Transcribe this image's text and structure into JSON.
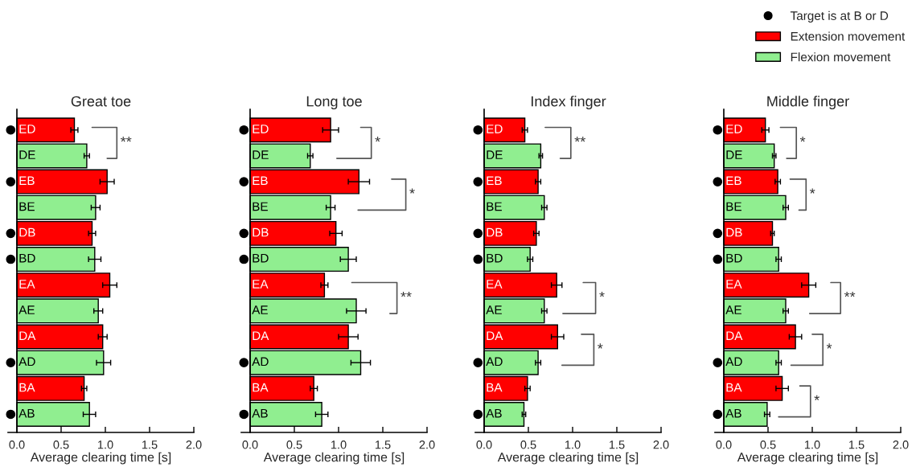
{
  "chart_data": [
    {
      "type": "bar",
      "orientation": "horizontal",
      "title": "Great toe",
      "xlabel": "Average clearing time [s]",
      "xlim": [
        -0.1,
        2.0
      ],
      "xticks": [
        {
          "value": 0,
          "label": "0.0"
        },
        {
          "value": 0.5,
          "label": "0.5"
        },
        {
          "value": 1,
          "label": "1.0"
        },
        {
          "value": 1.5,
          "label": "1.5"
        },
        {
          "value": 2,
          "label": "2.0"
        }
      ],
      "tick_labels": "x",
      "legend": false,
      "categories": [
        "ED",
        "DE",
        "EB",
        "BE",
        "DB",
        "BD",
        "EA",
        "AE",
        "DA",
        "AD",
        "BA",
        "AB"
      ],
      "series": [
        {
          "type": "scatter",
          "marker": "circle",
          "color": "#000000",
          "values": [
            -0.07,
            null,
            -0.07,
            null,
            -0.07,
            -0.07,
            null,
            null,
            null,
            -0.07,
            null,
            -0.07
          ]
        },
        {
          "color": "#ff0000",
          "values": [
            0.65,
            null,
            1.02,
            null,
            0.85,
            null,
            1.05,
            null,
            0.97,
            null,
            0.76,
            null
          ],
          "errors": [
            0.04,
            null,
            0.08,
            null,
            0.04,
            null,
            0.08,
            null,
            0.05,
            null,
            0.03,
            null
          ]
        },
        {
          "color": "#90ee90",
          "values": [
            null,
            0.79,
            null,
            0.89,
            null,
            0.88,
            null,
            0.92,
            null,
            0.98,
            null,
            0.82
          ],
          "errors": [
            null,
            0.03,
            null,
            0.05,
            null,
            0.07,
            null,
            0.05,
            null,
            0.08,
            null,
            0.07
          ]
        }
      ],
      "annotations": [
        "**"
      ]
    },
    {
      "type": "bar",
      "orientation": "horizontal",
      "title": "Long toe",
      "xlabel": "Average clearing time [s]",
      "xlim": [
        -0.1,
        2.0
      ],
      "xticks": [
        {
          "value": 0,
          "label": "0.0"
        },
        {
          "value": 0.5,
          "label": "0.5"
        },
        {
          "value": 1,
          "label": "1.0"
        },
        {
          "value": 1.5,
          "label": "1.5"
        },
        {
          "value": 2,
          "label": "2.0"
        }
      ],
      "tick_labels": "x",
      "legend": false,
      "categories": [
        "ED",
        "DE",
        "EB",
        "BE",
        "DB",
        "BD",
        "EA",
        "AE",
        "DA",
        "AD",
        "BA",
        "AB"
      ],
      "series": [
        {
          "type": "scatter",
          "marker": "circle",
          "color": "#000000",
          "values": [
            -0.07,
            null,
            -0.07,
            null,
            -0.07,
            -0.07,
            null,
            null,
            null,
            -0.07,
            null,
            -0.07
          ]
        },
        {
          "color": "#ff0000",
          "values": [
            0.91,
            null,
            1.23,
            null,
            0.97,
            null,
            0.84,
            null,
            1.11,
            null,
            0.72,
            null
          ],
          "errors": [
            0.09,
            null,
            0.12,
            null,
            0.07,
            null,
            0.04,
            null,
            0.11,
            null,
            0.04,
            null
          ]
        },
        {
          "color": "#90ee90",
          "values": [
            null,
            0.68,
            null,
            0.91,
            null,
            1.11,
            null,
            1.2,
            null,
            1.25,
            null,
            0.81
          ],
          "errors": [
            null,
            0.03,
            null,
            0.05,
            null,
            0.09,
            null,
            0.11,
            null,
            0.11,
            null,
            0.07
          ]
        }
      ],
      "annotations": [
        "*",
        "*",
        "**"
      ]
    },
    {
      "type": "bar",
      "orientation": "horizontal",
      "title": "Index finger",
      "xlabel": "Average clearing time [s]",
      "xlim": [
        -0.1,
        2.0
      ],
      "xticks": [
        {
          "value": 0,
          "label": "0.0"
        },
        {
          "value": 0.5,
          "label": "0.5"
        },
        {
          "value": 1,
          "label": "1.0"
        },
        {
          "value": 1.5,
          "label": "1.5"
        },
        {
          "value": 2,
          "label": "2.0"
        }
      ],
      "tick_labels": "x",
      "legend": false,
      "categories": [
        "ED",
        "DE",
        "EB",
        "BE",
        "DB",
        "BD",
        "EA",
        "AE",
        "DA",
        "AD",
        "BA",
        "AB"
      ],
      "series": [
        {
          "type": "scatter",
          "marker": "circle",
          "color": "#000000",
          "values": [
            -0.07,
            null,
            -0.07,
            null,
            -0.07,
            -0.07,
            null,
            null,
            null,
            -0.07,
            null,
            -0.07
          ]
        },
        {
          "color": "#ff0000",
          "values": [
            0.46,
            null,
            0.61,
            null,
            0.59,
            null,
            0.82,
            null,
            0.83,
            null,
            0.49,
            null
          ],
          "errors": [
            0.03,
            null,
            0.03,
            null,
            0.03,
            null,
            0.06,
            null,
            0.07,
            null,
            0.03,
            null
          ]
        },
        {
          "color": "#90ee90",
          "values": [
            null,
            0.64,
            null,
            0.68,
            null,
            0.52,
            null,
            0.68,
            null,
            0.61,
            null,
            0.45
          ],
          "errors": [
            null,
            0.02,
            null,
            0.03,
            null,
            0.03,
            null,
            0.03,
            null,
            0.03,
            null,
            0.02
          ]
        }
      ],
      "annotations": [
        "**",
        "*",
        "*"
      ]
    },
    {
      "type": "bar",
      "orientation": "horizontal",
      "title": "Middle finger",
      "xlabel": "Average clearing time [s]",
      "xlim": [
        -0.1,
        2.0
      ],
      "xticks": [
        {
          "value": 0,
          "label": "0.0"
        },
        {
          "value": 0.5,
          "label": "0.5"
        },
        {
          "value": 1,
          "label": "1.0"
        },
        {
          "value": 1.5,
          "label": "1.5"
        },
        {
          "value": 2,
          "label": "2.0"
        }
      ],
      "tick_labels": "x",
      "legend": "top right",
      "categories": [
        "ED",
        "DE",
        "EB",
        "BE",
        "DB",
        "BD",
        "EA",
        "AE",
        "DA",
        "AD",
        "BA",
        "AB"
      ],
      "series": [
        {
          "name": "Target is at B or D",
          "type": "scatter",
          "marker": "circle",
          "color": "#000000",
          "values": [
            -0.07,
            null,
            -0.07,
            null,
            -0.07,
            -0.07,
            null,
            null,
            null,
            -0.07,
            null,
            -0.07
          ]
        },
        {
          "name": "Extension movement",
          "color": "#ff0000",
          "values": [
            0.47,
            null,
            0.61,
            null,
            0.55,
            null,
            0.96,
            null,
            0.81,
            null,
            0.66,
            null
          ],
          "errors": [
            0.04,
            null,
            0.03,
            null,
            0.02,
            null,
            0.08,
            null,
            0.07,
            null,
            0.07,
            null
          ]
        },
        {
          "name": "Flexion movement",
          "color": "#90ee90",
          "values": [
            null,
            0.57,
            null,
            0.7,
            null,
            0.62,
            null,
            0.7,
            null,
            0.62,
            null,
            0.49
          ],
          "errors": [
            null,
            0.02,
            null,
            0.03,
            null,
            0.03,
            null,
            0.03,
            null,
            0.03,
            null,
            0.03
          ]
        }
      ],
      "annotations": [
        "*",
        "*",
        "**",
        "*",
        "*"
      ]
    }
  ]
}
